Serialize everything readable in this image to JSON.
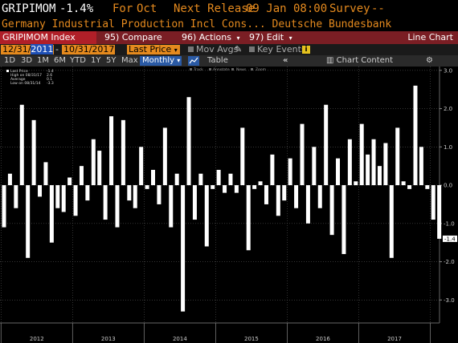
{
  "header": {
    "ticker": "GRIPIMOM",
    "value": "-1.4%",
    "period_label": "For",
    "period": "Oct",
    "next_release_label": "Next Release",
    "next_release": "09 Jan 08:00",
    "survey_label": "Survey",
    "survey": "--",
    "description": "Germany Industrial Production Incl Cons... Deutsche Bundesbank"
  },
  "menu": {
    "index": "GRIPIMOM Index",
    "compare_num": "95)",
    "compare": "Compare",
    "actions_num": "96)",
    "actions": "Actions",
    "edit_num": "97)",
    "edit": "Edit",
    "chart_type": "Line Chart"
  },
  "datebar": {
    "start_prefix": "12/31/",
    "start_year": "2011",
    "end": "10/31/2017",
    "field": "Last Price",
    "mov_avgs": "Mov Avgs",
    "key_events": "Key Events",
    "info": "i"
  },
  "periods": {
    "items": [
      "1D",
      "3D",
      "1M",
      "6M",
      "YTD",
      "1Y",
      "5Y",
      "Max"
    ],
    "selected": "Monthly",
    "table": "Table",
    "chart_content": "Chart Content"
  },
  "legend": {
    "items": [
      {
        "label": "Last Price",
        "value": "-1.4"
      },
      {
        "label": "High on 08/31/17",
        "value": "2.6"
      },
      {
        "label": "Average",
        "value": "0.1"
      },
      {
        "label": "Low on 08/31/14",
        "value": "-3.3"
      }
    ],
    "toolbar": [
      "Track",
      "Annotate",
      "News",
      "Zoom"
    ]
  },
  "colors": {
    "accent": "#e58a1e",
    "menu_bg": "#7a1e24",
    "menu_index_bg": "#b01f28",
    "selected_blue": "#2a5aa5",
    "bar": "#ffffff",
    "last_label_bg": "#ffffff"
  },
  "chart_data": {
    "type": "bar",
    "title": "",
    "xlabel": "",
    "ylabel": "",
    "ylim": [
      -3.6,
      3.1
    ],
    "yticks": [
      "3.0",
      "2.0",
      "1.0",
      "0.0",
      "-1.0",
      "-2.0",
      "-3.0"
    ],
    "ytick_values": [
      3.0,
      2.0,
      1.0,
      0.0,
      -1.0,
      -2.0,
      -3.0
    ],
    "xticks": [
      "2012",
      "2013",
      "2014",
      "2015",
      "2016",
      "2017"
    ],
    "last_value_label": "-1.4",
    "start": "2012-01",
    "values": [
      -1.1,
      0.3,
      -0.6,
      2.1,
      -1.9,
      1.7,
      -0.3,
      0.6,
      -1.5,
      -0.6,
      -0.7,
      0.2,
      -0.8,
      0.5,
      -0.4,
      1.2,
      0.9,
      -0.9,
      1.8,
      -1.1,
      1.7,
      -0.4,
      -0.6,
      1.0,
      -0.1,
      0.4,
      -0.5,
      1.5,
      -1.1,
      0.3,
      -3.3,
      2.3,
      -0.9,
      0.3,
      -1.6,
      -0.1,
      0.4,
      -0.2,
      0.3,
      -0.2,
      1.5,
      -1.7,
      -0.1,
      0.1,
      -0.5,
      0.8,
      -0.8,
      -0.4,
      0.7,
      -0.6,
      1.6,
      -1.0,
      1.0,
      -0.6,
      2.1,
      -1.3,
      0.7,
      -1.8,
      1.2,
      0.1,
      1.6,
      0.8,
      1.2,
      0.5,
      1.1,
      -1.9,
      1.5,
      0.1,
      -0.1,
      2.6,
      1.0,
      -0.1,
      -0.9,
      -1.4
    ]
  }
}
